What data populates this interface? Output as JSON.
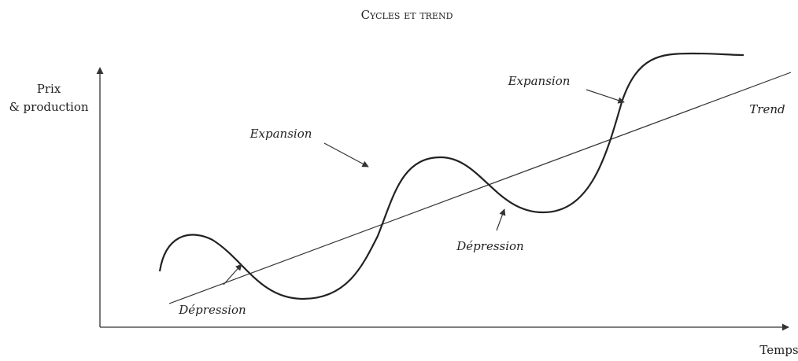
{
  "title": "Cycles et trend",
  "axes": {
    "y_label": [
      "Prix",
      "& production"
    ],
    "x_label": "Temps"
  },
  "labels": {
    "expansion_left": "Expansion",
    "expansion_right": "Expansion",
    "trend": "Trend",
    "depression_left": "Dépression",
    "depression_right": "Dépression"
  }
}
